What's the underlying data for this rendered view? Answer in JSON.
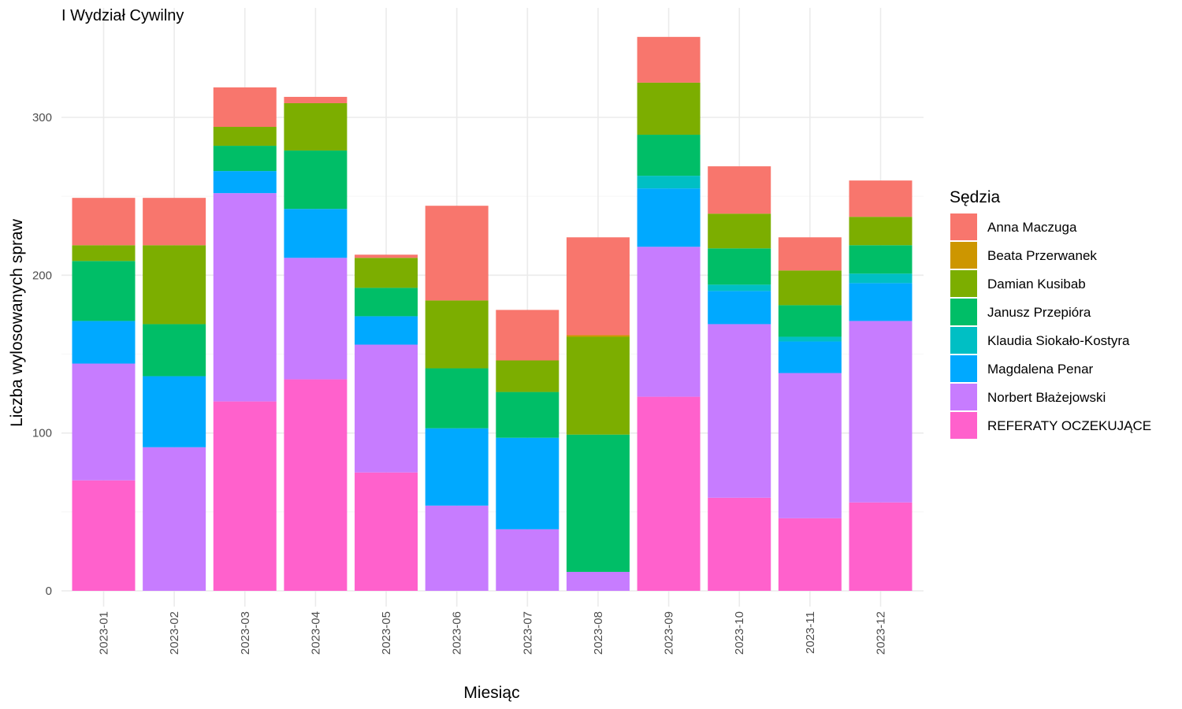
{
  "chart_data": {
    "type": "bar",
    "stacked": true,
    "title": "I Wydział Cywilny",
    "xlabel": "Miesiąc",
    "ylabel": "Liczba wylosowanych spraw",
    "ylim": [
      0,
      350
    ],
    "yticks": [
      0,
      100,
      200,
      300
    ],
    "grid": true,
    "legend_position": "right",
    "legend_title": "Sędzia",
    "categories": [
      "2023-01",
      "2023-02",
      "2023-03",
      "2023-04",
      "2023-05",
      "2023-06",
      "2023-07",
      "2023-08",
      "2023-09",
      "2023-10",
      "2023-11",
      "2023-12"
    ],
    "series": [
      {
        "name": "REFERATY OCZEKUJĄCE",
        "color": "#FF61CC",
        "values": [
          70,
          0,
          120,
          134,
          75,
          0,
          0,
          0,
          123,
          59,
          46,
          56
        ]
      },
      {
        "name": "Norbert Błażejowski",
        "color": "#C77CFF",
        "values": [
          74,
          91,
          132,
          77,
          81,
          54,
          39,
          12,
          95,
          110,
          92,
          115
        ]
      },
      {
        "name": "Magdalena Penar",
        "color": "#00A9FF",
        "values": [
          27,
          45,
          14,
          31,
          18,
          49,
          58,
          0,
          37,
          21,
          20,
          24
        ]
      },
      {
        "name": "Klaudia Siokało-Kostyra",
        "color": "#00BFC4",
        "values": [
          0,
          0,
          0,
          0,
          0,
          0,
          0,
          0,
          8,
          4,
          3,
          6
        ]
      },
      {
        "name": "Janusz Przepióra",
        "color": "#00BE67",
        "values": [
          38,
          33,
          16,
          37,
          18,
          38,
          29,
          87,
          26,
          23,
          20,
          18
        ]
      },
      {
        "name": "Damian Kusibab",
        "color": "#7CAE00",
        "values": [
          10,
          50,
          12,
          30,
          19,
          43,
          20,
          62,
          33,
          22,
          22,
          18
        ]
      },
      {
        "name": "Beata Przerwanek",
        "color": "#CD9600",
        "values": [
          0,
          0,
          0,
          0,
          0,
          0,
          0,
          1,
          0,
          0,
          0,
          0
        ]
      },
      {
        "name": "Anna Maczuga",
        "color": "#F8766D",
        "values": [
          30,
          30,
          25,
          4,
          2,
          60,
          32,
          62,
          29,
          30,
          21,
          23
        ]
      }
    ],
    "legend_order": [
      "Anna Maczuga",
      "Beata Przerwanek",
      "Damian Kusibab",
      "Janusz Przepióra",
      "Klaudia Siokało-Kostyra",
      "Magdalena Penar",
      "Norbert Błażejowski",
      "REFERATY OCZEKUJĄCE"
    ]
  }
}
